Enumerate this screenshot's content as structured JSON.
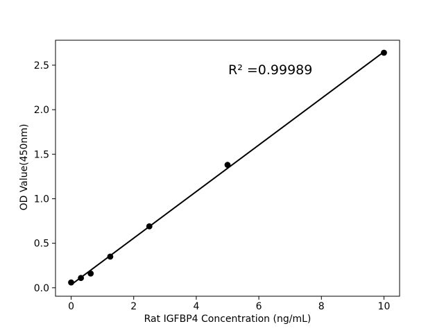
{
  "figure": {
    "background": "#ffffff"
  },
  "chart_data": {
    "type": "scatter",
    "title": "",
    "xlabel": "Rat IGFBP4 Concentration (ng/mL)",
    "ylabel": "OD Value(450nm)",
    "annotation": "R² =0.99989",
    "x": [
      0,
      0.3125,
      0.625,
      1.25,
      2.5,
      5,
      10
    ],
    "y": [
      0.06,
      0.11,
      0.16,
      0.35,
      0.69,
      1.38,
      2.64
    ],
    "trendline": {
      "x": [
        0,
        10
      ],
      "y": [
        0.034,
        2.65
      ]
    },
    "xlim": [
      -0.5,
      10.5
    ],
    "ylim": [
      -0.095,
      2.78
    ],
    "xticks": {
      "values": [
        0,
        2,
        4,
        6,
        8,
        10
      ],
      "labels": [
        "0",
        "2",
        "4",
        "6",
        "8",
        "10"
      ]
    },
    "yticks": {
      "values": [
        0,
        0.5,
        1.0,
        1.5,
        2.0,
        2.5
      ],
      "labels": [
        "0.0",
        "0.5",
        "1.0",
        "1.5",
        "2.0",
        "2.5"
      ]
    },
    "grid": false,
    "legend": null,
    "marker_color": "#000000",
    "line_color": "#000000",
    "axis_color": "#000000"
  }
}
